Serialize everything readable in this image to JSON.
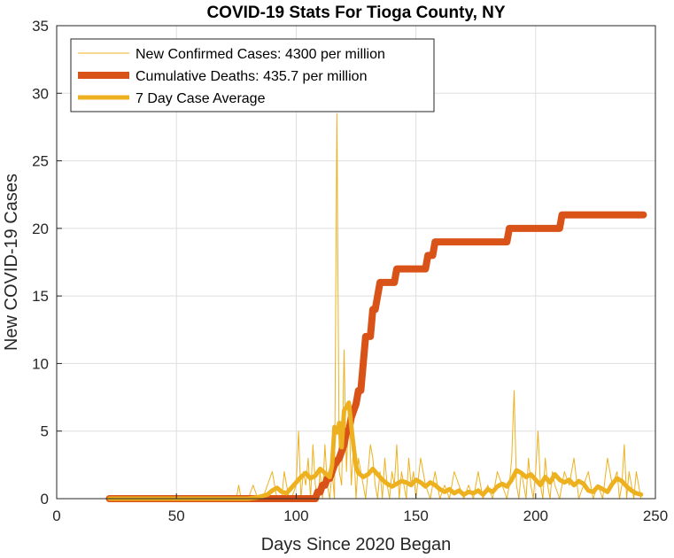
{
  "chart_data": {
    "type": "line",
    "title": "COVID-19 Stats For Tioga County, NY",
    "xlabel": "Days Since 2020 Began",
    "ylabel": "New COVID-19 Cases",
    "xlim": [
      0,
      250
    ],
    "ylim": [
      0,
      35
    ],
    "xticks": [
      "0",
      "50",
      "100",
      "150",
      "200",
      "250"
    ],
    "yticks": [
      "0",
      "5",
      "10",
      "15",
      "20",
      "25",
      "30",
      "35"
    ],
    "grid": true,
    "legend_position": "top-left",
    "series": [
      {
        "name": "New Confirmed Cases: 4300 per million",
        "color": "#EDB120",
        "x": [
          22,
          75,
          76,
          77,
          78,
          80,
          82,
          84,
          86,
          88,
          90,
          92,
          94,
          95,
          96,
          97,
          98,
          100,
          101,
          102,
          103,
          104,
          105,
          106,
          107,
          108,
          109,
          110,
          111,
          112,
          113,
          114,
          115,
          116,
          117,
          118,
          119,
          120,
          121,
          122,
          123,
          124,
          125,
          126,
          127,
          128,
          129,
          130,
          131,
          132,
          133,
          134,
          135,
          136,
          137,
          138,
          139,
          140,
          141,
          142,
          143,
          144,
          145,
          146,
          147,
          148,
          149,
          150,
          152,
          154,
          156,
          158,
          160,
          162,
          164,
          166,
          168,
          170,
          172,
          174,
          176,
          178,
          180,
          182,
          184,
          186,
          188,
          189,
          190,
          191,
          192,
          193,
          194,
          195,
          196,
          197,
          198,
          199,
          200,
          201,
          202,
          203,
          204,
          205,
          206,
          207,
          208,
          210,
          212,
          214,
          216,
          218,
          220,
          222,
          224,
          226,
          228,
          230,
          232,
          234,
          235,
          236,
          237,
          238,
          239,
          240,
          241,
          242,
          243,
          244
        ],
        "values": [
          0,
          0,
          1,
          0,
          0,
          0,
          1,
          0,
          0,
          1,
          2,
          0,
          0,
          2,
          1,
          0,
          0,
          1,
          5,
          0,
          2,
          1,
          3,
          0,
          4,
          1,
          0,
          2,
          0,
          4,
          1,
          0,
          2,
          0,
          28.5,
          2,
          1,
          11,
          2,
          7,
          1,
          4,
          0,
          3,
          2,
          1,
          0,
          2,
          4,
          3,
          1,
          0,
          2,
          0,
          3,
          1,
          0,
          2,
          1,
          4,
          0,
          2,
          1,
          0,
          3,
          1,
          2,
          0,
          3,
          1,
          0,
          2,
          0,
          1,
          0,
          2,
          1,
          0,
          1,
          0,
          2,
          0,
          1,
          0,
          2,
          1,
          0,
          1,
          3,
          8,
          1,
          0,
          2,
          1,
          0,
          3,
          1,
          0,
          2,
          5,
          1,
          0,
          3,
          1,
          0,
          2,
          1,
          0,
          2,
          1,
          3,
          0,
          1,
          2,
          0,
          1,
          0,
          3,
          1,
          2,
          0,
          1,
          4,
          0,
          2,
          1,
          0,
          2,
          1,
          0
        ],
        "line_width": 1
      },
      {
        "name": "Cumulative Deaths: 435.7 per million",
        "color": "#D95319",
        "x": [
          22,
          108,
          108,
          109,
          110,
          111,
          112,
          113,
          114,
          115,
          116,
          118,
          119,
          120,
          121,
          122,
          123,
          124,
          125,
          126,
          127,
          128,
          129,
          130,
          131,
          132,
          133,
          134,
          135,
          136,
          137,
          138,
          139,
          140,
          141,
          142,
          143,
          144,
          145,
          146,
          147,
          148,
          149,
          150,
          151,
          152,
          153,
          154,
          155,
          156,
          157,
          158,
          159,
          160,
          161,
          162,
          163,
          164,
          165,
          166,
          167,
          168,
          170,
          172,
          174,
          176,
          178,
          180,
          182,
          184,
          186,
          188,
          189,
          190,
          195,
          200,
          205,
          210,
          211,
          215,
          220,
          225,
          230,
          235,
          240,
          245
        ],
        "values": [
          0,
          0,
          0,
          0.5,
          0.5,
          1,
          1,
          1.5,
          1.5,
          2,
          2.5,
          3,
          3.5,
          4,
          5,
          5,
          6,
          6.5,
          7,
          8,
          8,
          10,
          12,
          12,
          12,
          14,
          14,
          15,
          16,
          16,
          16,
          16,
          16,
          16,
          16,
          17,
          17,
          17,
          17,
          17,
          17,
          17,
          17,
          17,
          17,
          17,
          17,
          17,
          18,
          18,
          18,
          19,
          19,
          19,
          19,
          19,
          19,
          19,
          19,
          19,
          19,
          19,
          19,
          19,
          19,
          19,
          19,
          19,
          19,
          19,
          19,
          19,
          20,
          20,
          20,
          20,
          20,
          20,
          21,
          21,
          21,
          21,
          21,
          21,
          21,
          21
        ],
        "line_width": 8
      },
      {
        "name": "7 Day Case Average",
        "color": "#EDB120",
        "x": [
          22,
          80,
          84,
          88,
          90,
          92,
          94,
          96,
          98,
          100,
          102,
          104,
          106,
          108,
          110,
          112,
          114,
          115,
          116,
          117,
          118,
          119,
          120,
          121,
          122,
          123,
          124,
          125,
          126,
          128,
          130,
          132,
          134,
          136,
          138,
          140,
          142,
          144,
          146,
          148,
          150,
          152,
          154,
          156,
          158,
          160,
          162,
          164,
          166,
          168,
          170,
          172,
          174,
          176,
          178,
          180,
          182,
          184,
          186,
          188,
          190,
          192,
          194,
          196,
          198,
          200,
          202,
          204,
          206,
          208,
          210,
          212,
          214,
          216,
          218,
          220,
          222,
          224,
          226,
          228,
          230,
          232,
          234,
          236,
          238,
          240,
          242,
          244
        ],
        "values": [
          0,
          0,
          0.1,
          0.3,
          0.6,
          0.8,
          0.5,
          0.4,
          0.8,
          1.2,
          1.6,
          1.9,
          1.5,
          1.7,
          2.2,
          1.9,
          1.6,
          2.5,
          5.3,
          4.9,
          5.6,
          3.8,
          6.5,
          6.8,
          7.1,
          5.4,
          3.8,
          2.4,
          1.9,
          1.6,
          1.8,
          2.2,
          1.8,
          1.4,
          1.1,
          0.9,
          1.1,
          1.3,
          1.2,
          1.0,
          1.4,
          1.2,
          0.9,
          1.2,
          1.0,
          0.7,
          0.5,
          0.7,
          0.4,
          0.6,
          0.3,
          0.5,
          0.4,
          0.6,
          0.3,
          0.7,
          0.5,
          0.9,
          1.1,
          0.9,
          1.4,
          2.1,
          1.9,
          1.6,
          1.8,
          1.4,
          1.0,
          1.6,
          1.2,
          1.8,
          1.4,
          1.2,
          1.4,
          1.0,
          1.3,
          1.1,
          0.6,
          0.5,
          0.9,
          0.7,
          0.5,
          1.1,
          1.5,
          1.3,
          0.9,
          0.6,
          0.4,
          0.3
        ],
        "line_width": 5
      }
    ]
  }
}
